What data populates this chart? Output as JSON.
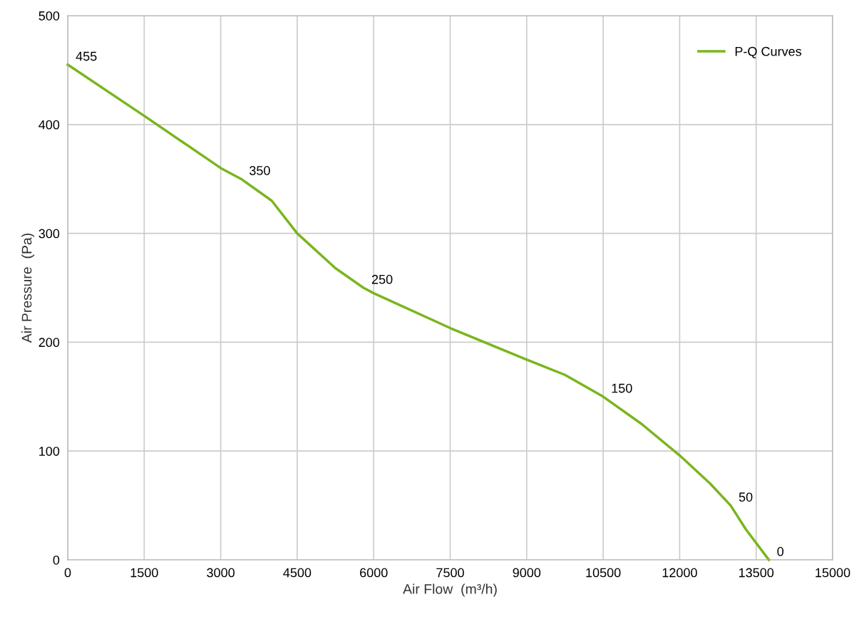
{
  "chart_data": {
    "type": "line",
    "xlabel": "Air Flow  (m³/h)",
    "ylabel": "Air Pressure  (Pa)",
    "x": [
      0,
      1500,
      3000,
      3400,
      4000,
      4500,
      5250,
      5800,
      6000,
      7500,
      9000,
      9750,
      10500,
      11250,
      12000,
      12600,
      13000,
      13300,
      13750
    ],
    "series": [
      {
        "name": "P-Q Curves",
        "color": "#7ab51d",
        "values": [
          455,
          408,
          360,
          350,
          330,
          300,
          268,
          250,
          245,
          213,
          184,
          170,
          150,
          125,
          96,
          70,
          50,
          28,
          0
        ]
      }
    ],
    "xlim": [
      0,
      15000
    ],
    "xticks": [
      0,
      1500,
      3000,
      4500,
      6000,
      7500,
      9000,
      10500,
      12000,
      13500,
      15000
    ],
    "ylim": [
      0,
      500
    ],
    "yticks": [
      0,
      100,
      200,
      300,
      400,
      500
    ],
    "annotations": [
      {
        "text": "455",
        "x": 0,
        "y": 455
      },
      {
        "text": "350",
        "x": 3400,
        "y": 350
      },
      {
        "text": "250",
        "x": 5800,
        "y": 250
      },
      {
        "text": "150",
        "x": 10500,
        "y": 150
      },
      {
        "text": "50",
        "x": 13000,
        "y": 50
      },
      {
        "text": "0",
        "x": 13750,
        "y": 0
      }
    ],
    "grid": true,
    "legend": "top right",
    "marker": "none",
    "line_style": "solid"
  }
}
